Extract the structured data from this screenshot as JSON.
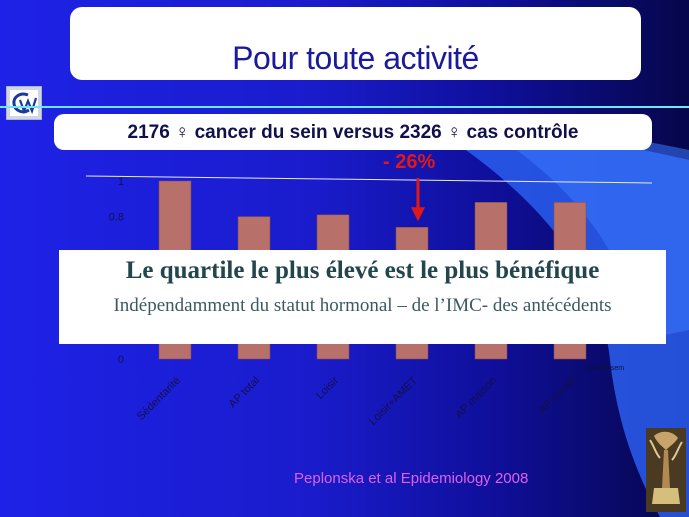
{
  "header": {
    "title": "Pour toute activité"
  },
  "subtitle": "2176 ♀ cancer du sein versus 2326 ♀ cas contrôle",
  "annotation": {
    "text": "-  26%",
    "color": "#e01818"
  },
  "overlay": {
    "title": "Le quartile le plus élevé est le plus bénéfique",
    "subtitle": "Indépendamment du statut hormonal – de l’IMC- des antécédents"
  },
  "citation": "Peplonska et al Epidemiology 2008",
  "icons": {
    "logo": "logo-icon",
    "sculpture": "sculpture-image"
  },
  "colors": {
    "bar": "#b8706a",
    "accent_line": "#6fe7f2",
    "citation": "#e060e8",
    "annotation": "#e01818"
  },
  "chart_data": {
    "type": "bar",
    "categories": [
      "Sédentarité",
      "AP total",
      "Loisir",
      "Loisir+AMET",
      "AP maison",
      "AP travail"
    ],
    "values": [
      1,
      0.8,
      0.81,
      0.74,
      0.88,
      0.88
    ],
    "y_ticks": [
      "0",
      "0.8",
      "1"
    ],
    "ylim": [
      0,
      1
    ],
    "reference_line": 1,
    "highlight_category": "Loisir+AMET"
  }
}
